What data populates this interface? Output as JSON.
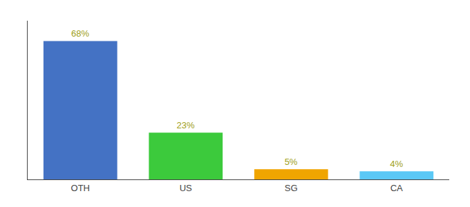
{
  "chart_data": {
    "type": "bar",
    "categories": [
      "OTH",
      "US",
      "SG",
      "CA"
    ],
    "values": [
      68,
      23,
      5,
      4
    ],
    "value_labels": [
      "68%",
      "23%",
      "5%",
      "4%"
    ],
    "data_labels": true,
    "colors": [
      "#4472c4",
      "#3cca3c",
      "#f0a500",
      "#5bc8f5"
    ],
    "ylim": [
      0,
      78
    ],
    "grid": false,
    "tick_labels": "x"
  }
}
